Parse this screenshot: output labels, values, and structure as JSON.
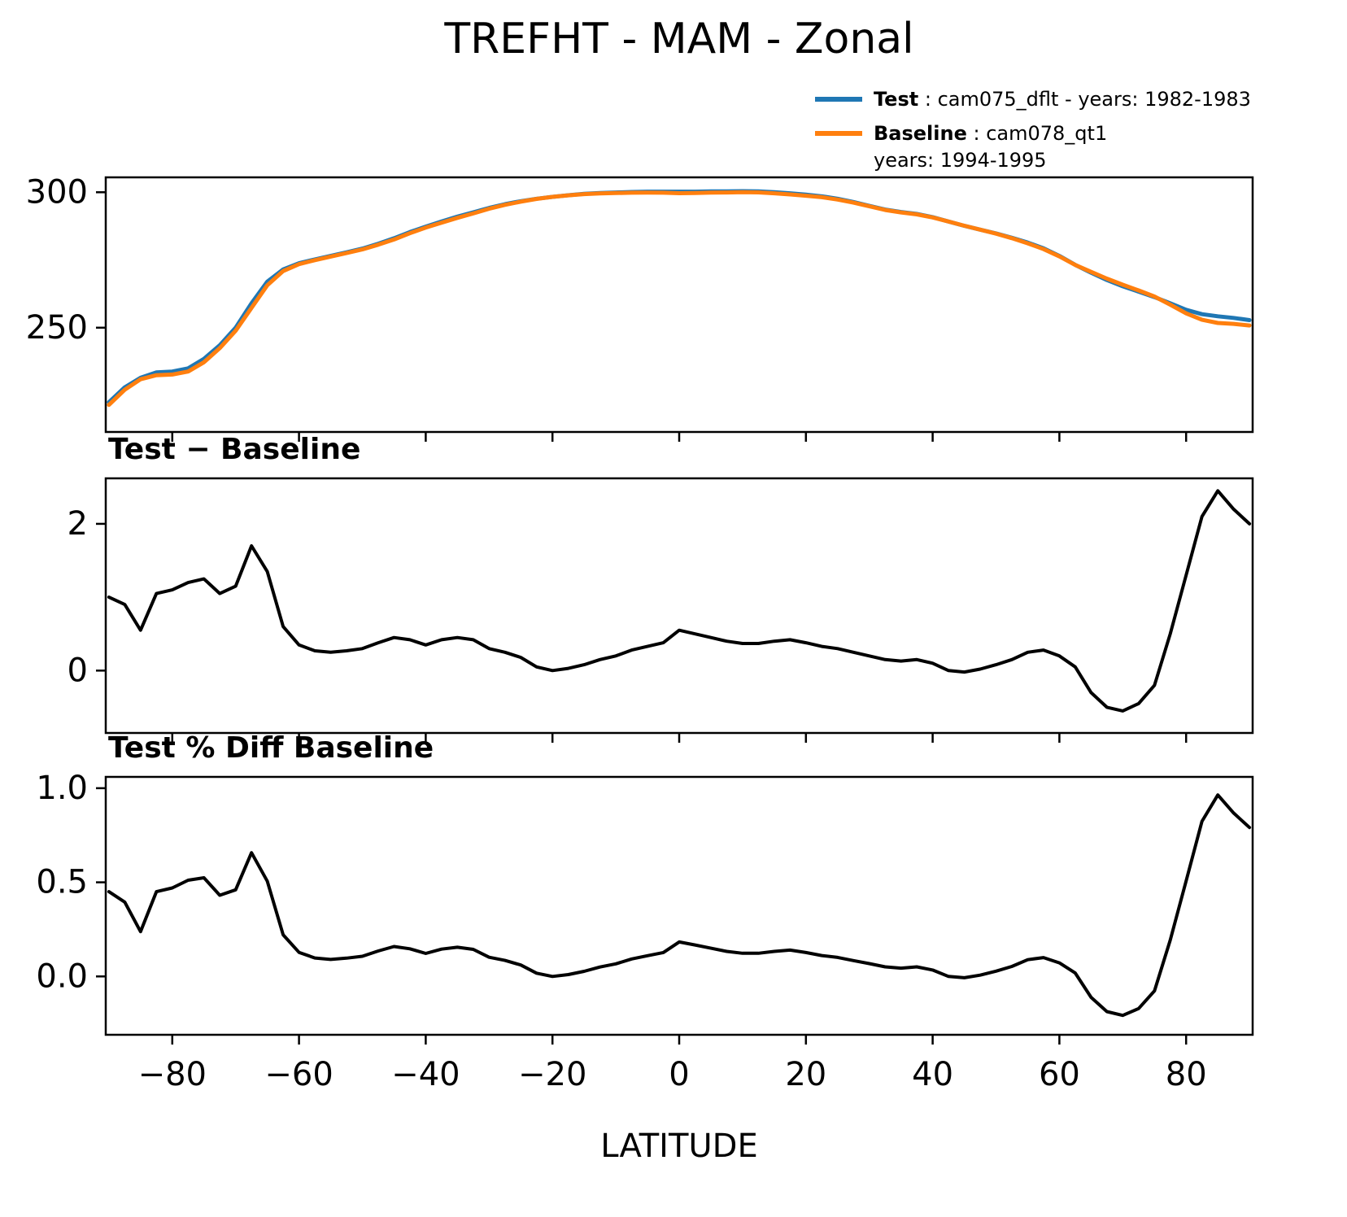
{
  "chart_data": {
    "type": "line",
    "title": "TREFHT - MAM - Zonal",
    "xlabel": "LATITUDE",
    "xlim": [
      -90.5,
      90.5
    ],
    "grid": false,
    "legend": {
      "position": "upper-right-outside",
      "items": [
        {
          "name": "Test",
          "bold": "Test",
          "rest": " : cam075_dflt - years: 1982-1983",
          "color": "#1f77b4"
        },
        {
          "name": "Baseline",
          "bold": "Baseline",
          "rest": " : cam078_qt1",
          "line2": "years: 1994-1995",
          "color": "#ff7f0e"
        }
      ]
    },
    "x": [
      -90,
      -87.5,
      -85,
      -82.5,
      -80,
      -77.5,
      -75,
      -72.5,
      -70,
      -67.5,
      -65,
      -62.5,
      -60,
      -57.5,
      -55,
      -52.5,
      -50,
      -47.5,
      -45,
      -42.5,
      -40,
      -37.5,
      -35,
      -32.5,
      -30,
      -27.5,
      -25,
      -22.5,
      -20,
      -17.5,
      -15,
      -12.5,
      -10,
      -7.5,
      -5,
      -2.5,
      0,
      2.5,
      5,
      7.5,
      10,
      12.5,
      15,
      17.5,
      20,
      22.5,
      25,
      27.5,
      30,
      32.5,
      35,
      37.5,
      40,
      42.5,
      45,
      47.5,
      50,
      52.5,
      55,
      57.5,
      60,
      62.5,
      65,
      67.5,
      70,
      72.5,
      75,
      77.5,
      80,
      82.5,
      85,
      87.5,
      90
    ],
    "xticks": [
      {
        "v": -80,
        "label": "−80"
      },
      {
        "v": -60,
        "label": "−60"
      },
      {
        "v": -40,
        "label": "−40"
      },
      {
        "v": -20,
        "label": "−20"
      },
      {
        "v": 0,
        "label": "0"
      },
      {
        "v": 20,
        "label": "20"
      },
      {
        "v": 40,
        "label": "40"
      },
      {
        "v": 60,
        "label": "60"
      },
      {
        "v": 80,
        "label": "80"
      }
    ],
    "panels": [
      {
        "name": "zonal-mean",
        "ylim": [
          211.5,
          305.5
        ],
        "yticks": [
          {
            "v": 250,
            "label": "250"
          },
          {
            "v": 300,
            "label": "300"
          }
        ],
        "series": [
          {
            "name": "test",
            "color": "#1f77b4",
            "width": 5,
            "values": [
              222.5,
              228,
              231.5,
              233.5,
              233.8,
              235,
              238.5,
              243.5,
              250,
              259,
              267,
              271.5,
              273.8,
              275.2,
              276.5,
              277.8,
              279.2,
              281,
              283,
              285.3,
              287.3,
              289.2,
              291,
              292.6,
              294.2,
              295.6,
              296.7,
              297.6,
              298.3,
              298.9,
              299.4,
              299.7,
              299.9,
              300.1,
              300.2,
              300.2,
              300.2,
              300.2,
              300.3,
              300.3,
              300.4,
              300.3,
              300.0,
              299.6,
              299.1,
              298.5,
              297.6,
              296.4,
              295.0,
              293.6,
              292.7,
              292.0,
              290.8,
              289.2,
              287.6,
              286.2,
              284.8,
              283.2,
              281.4,
              279.3,
              276.5,
              273.2,
              270.3,
              267.6,
              265.3,
              263.3,
              261.3,
              259.0,
              256.6,
              255.0,
              254.2,
              253.6,
              252.8
            ]
          },
          {
            "name": "baseline",
            "color": "#ff7f0e",
            "width": 5,
            "values": [
              221.5,
              227.1,
              230.95,
              232.45,
              232.7,
              233.8,
              237.25,
              242.45,
              248.85,
              257.3,
              265.65,
              270.9,
              273.45,
              274.93,
              276.25,
              277.53,
              278.9,
              280.62,
              282.55,
              284.88,
              286.95,
              288.78,
              290.55,
              292.18,
              293.9,
              295.35,
              296.52,
              297.55,
              298.3,
              298.87,
              299.32,
              299.55,
              299.7,
              299.82,
              299.87,
              299.82,
              299.65,
              299.7,
              299.85,
              299.9,
              300.03,
              299.93,
              299.6,
              299.18,
              298.72,
              298.17,
              297.3,
              296.15,
              294.8,
              293.45,
              292.57,
              291.85,
              290.7,
              289.2,
              287.62,
              286.18,
              284.72,
              283.05,
              281.15,
              279.02,
              276.3,
              273.15,
              270.6,
              268.1,
              265.85,
              263.75,
              261.5,
              258.5,
              255.3,
              252.9,
              251.75,
              251.4,
              250.8
            ]
          }
        ]
      },
      {
        "name": "difference",
        "title": "Test − Baseline",
        "ylim": [
          -0.85,
          2.62
        ],
        "yticks": [
          {
            "v": 0,
            "label": "0"
          },
          {
            "v": 2,
            "label": "2"
          }
        ],
        "series": [
          {
            "name": "test-minus-baseline",
            "color": "#000000",
            "width": 4,
            "values": [
              1.0,
              0.9,
              0.55,
              1.05,
              1.1,
              1.2,
              1.25,
              1.05,
              1.15,
              1.7,
              1.35,
              0.6,
              0.35,
              0.27,
              0.25,
              0.27,
              0.3,
              0.38,
              0.45,
              0.42,
              0.35,
              0.42,
              0.45,
              0.42,
              0.3,
              0.25,
              0.18,
              0.05,
              0.0,
              0.03,
              0.08,
              0.15,
              0.2,
              0.28,
              0.33,
              0.38,
              0.55,
              0.5,
              0.45,
              0.4,
              0.37,
              0.37,
              0.4,
              0.42,
              0.38,
              0.33,
              0.3,
              0.25,
              0.2,
              0.15,
              0.13,
              0.15,
              0.1,
              0.0,
              -0.02,
              0.02,
              0.08,
              0.15,
              0.25,
              0.28,
              0.2,
              0.05,
              -0.3,
              -0.5,
              -0.55,
              -0.45,
              -0.2,
              0.5,
              1.3,
              2.1,
              2.45,
              2.2,
              2.0
            ]
          }
        ]
      },
      {
        "name": "percent-difference",
        "title": "Test % Diff Baseline",
        "ylim": [
          -0.31,
          1.06
        ],
        "yticks": [
          {
            "v": 0,
            "label": "0.0"
          },
          {
            "v": 0.5,
            "label": "0.5"
          },
          {
            "v": 1,
            "label": "1.0"
          }
        ],
        "series": [
          {
            "name": "test-pct-diff-baseline",
            "color": "#000000",
            "width": 4,
            "values": [
              0.45,
              0.395,
              0.238,
              0.45,
              0.47,
              0.511,
              0.524,
              0.431,
              0.46,
              0.657,
              0.506,
              0.221,
              0.128,
              0.098,
              0.09,
              0.097,
              0.107,
              0.135,
              0.159,
              0.147,
              0.122,
              0.145,
              0.155,
              0.144,
              0.102,
              0.085,
              0.061,
              0.017,
              0.0,
              0.01,
              0.027,
              0.05,
              0.067,
              0.093,
              0.11,
              0.127,
              0.183,
              0.167,
              0.15,
              0.133,
              0.123,
              0.123,
              0.133,
              0.14,
              0.127,
              0.111,
              0.101,
              0.084,
              0.068,
              0.051,
              0.044,
              0.051,
              0.034,
              0.0,
              -0.007,
              0.007,
              0.028,
              0.053,
              0.089,
              0.1,
              0.072,
              0.018,
              -0.111,
              -0.187,
              -0.207,
              -0.171,
              -0.077,
              0.193,
              0.507,
              0.824,
              0.964,
              0.868,
              0.791
            ]
          }
        ]
      }
    ]
  }
}
